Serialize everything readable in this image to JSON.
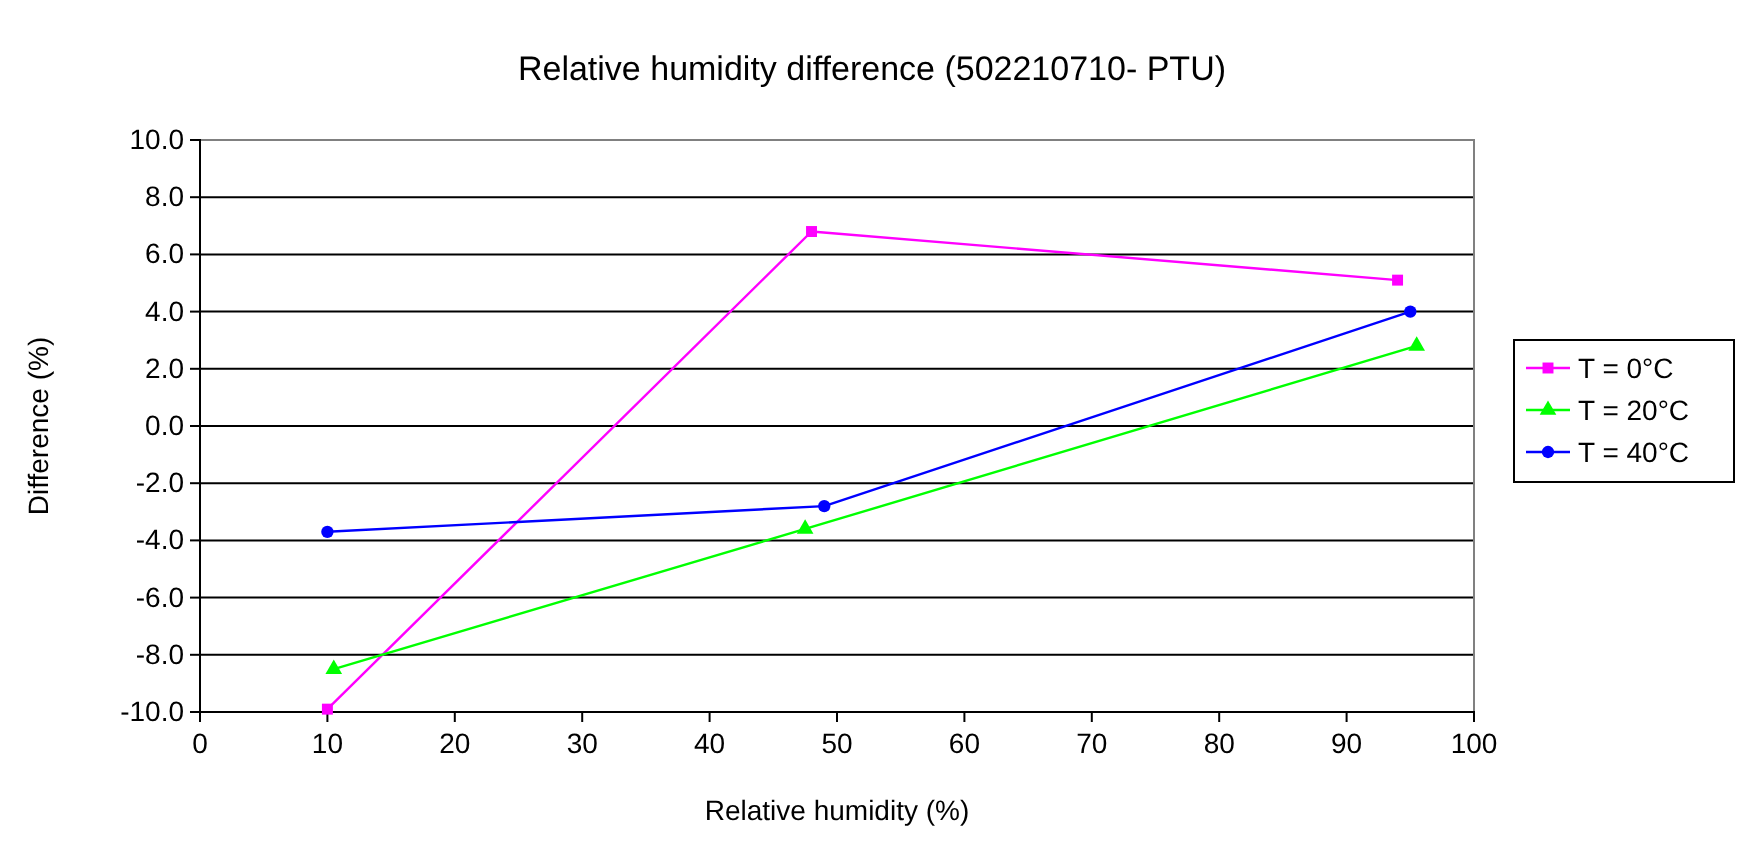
{
  "chart_data": {
    "type": "line",
    "title": "Relative humidity difference (502210710- PTU)",
    "xlabel": "Relative humidity (%)",
    "ylabel": "Difference (%)",
    "xlim": [
      0,
      100
    ],
    "xticks": [
      0,
      10,
      20,
      30,
      40,
      50,
      60,
      70,
      80,
      90,
      100
    ],
    "ylim": [
      -10,
      10
    ],
    "yticks": [
      {
        "value": -10,
        "label": "-10.0"
      },
      {
        "value": -8,
        "label": "-8.0"
      },
      {
        "value": -6,
        "label": "-6.0"
      },
      {
        "value": -4,
        "label": "-4.0"
      },
      {
        "value": -2,
        "label": "-2.0"
      },
      {
        "value": 0,
        "label": "0.0"
      },
      {
        "value": 2,
        "label": "2.0"
      },
      {
        "value": 4,
        "label": "4.0"
      },
      {
        "value": 6,
        "label": "6.0"
      },
      {
        "value": 8,
        "label": "8.0"
      },
      {
        "value": 10,
        "label": "10.0"
      }
    ],
    "grid": "y",
    "legend": "right",
    "line_style": "solid",
    "series": [
      {
        "name": "T = 0°C",
        "color": "#ff00ff",
        "marker": "square",
        "x": [
          10,
          48,
          94
        ],
        "values": [
          -9.9,
          6.8,
          5.1
        ]
      },
      {
        "name": "T = 20°C",
        "color": "#00ff00",
        "marker": "triangle",
        "x": [
          10.5,
          47.5,
          95.5
        ],
        "values": [
          -8.5,
          -3.6,
          2.8
        ]
      },
      {
        "name": "T = 40°C",
        "color": "#0000ff",
        "marker": "circle",
        "x": [
          10,
          49,
          95
        ],
        "values": [
          -3.7,
          -2.8,
          4.0
        ]
      }
    ]
  }
}
